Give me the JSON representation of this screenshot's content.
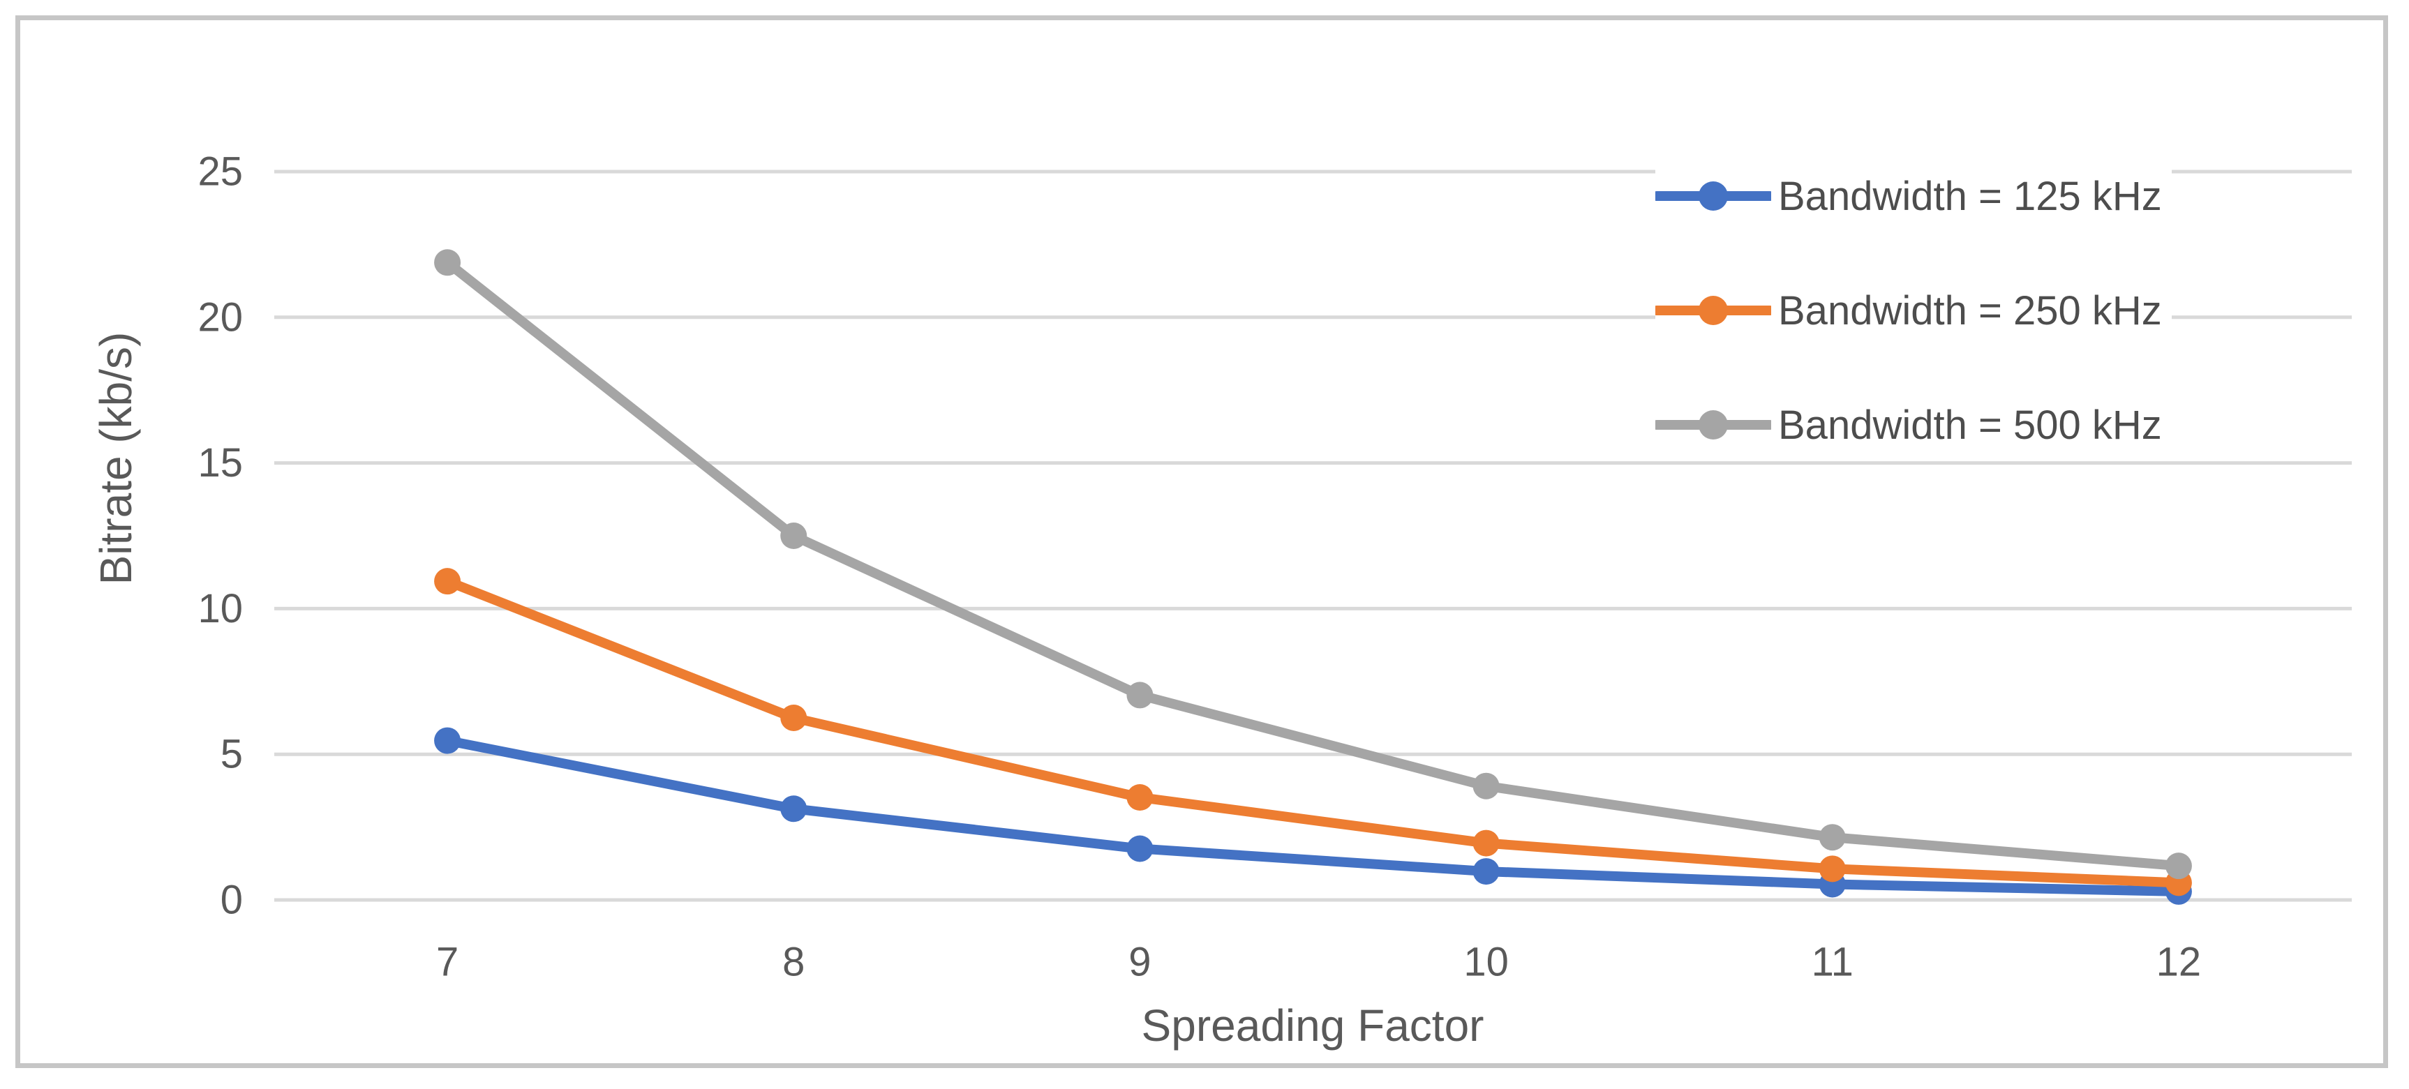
{
  "figure": {
    "background": "#ffffff",
    "border_color": "#c6c6c6"
  },
  "chart_data": {
    "type": "line",
    "title": "",
    "xlabel": "Spreading Factor",
    "ylabel": "Bitrate (kb/s)",
    "x": [
      7,
      8,
      9,
      10,
      11,
      12
    ],
    "x_tick_labels": [
      "7",
      "8",
      "9",
      "10",
      "11",
      "12"
    ],
    "y_ticks": [
      0,
      5,
      10,
      15,
      20,
      25
    ],
    "y_tick_labels": [
      "0",
      "5",
      "10",
      "15",
      "20",
      "25"
    ],
    "xlim": [
      6.5,
      12.5
    ],
    "ylim": [
      0,
      25
    ],
    "grid": "horizontal",
    "gridline_color": "#d9d9d9",
    "tick_text_color": "#595959",
    "legend_position": "top-right",
    "series": [
      {
        "name": "Bandwidth = 125 kHz",
        "color": "#4472c4",
        "marker": "circle",
        "values": [
          5.47,
          3.13,
          1.76,
          0.98,
          0.54,
          0.29
        ]
      },
      {
        "name": "Bandwidth = 250 kHz",
        "color": "#ed7d31",
        "marker": "circle",
        "values": [
          10.94,
          6.25,
          3.52,
          1.95,
          1.07,
          0.59
        ]
      },
      {
        "name": "Bandwidth = 500 kHz",
        "color": "#a5a5a5",
        "marker": "circle",
        "values": [
          21.88,
          12.5,
          7.03,
          3.91,
          2.15,
          1.17
        ]
      }
    ]
  }
}
